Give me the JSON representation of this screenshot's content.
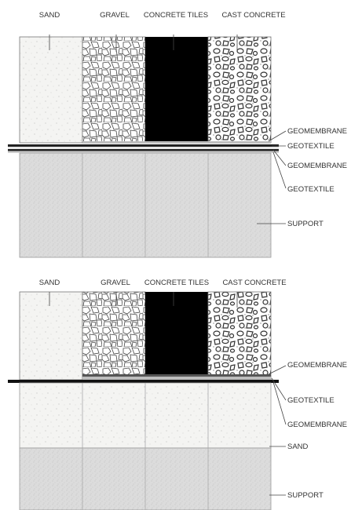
{
  "diagram1": {
    "top_labels": [
      "SAND",
      "GRAVEL",
      "CONCRETE TILES",
      "CAST CONCRETE"
    ],
    "side_labels": [
      "GEOMEMBRANE",
      "GEOTEXTILE",
      "GEOMEMBRANE",
      "GEOTEXTILE",
      "SUPPORT"
    ]
  },
  "diagram2": {
    "top_labels": [
      "SAND",
      "GRAVEL",
      "CONCRETE TILES",
      "CAST CONCRETE"
    ],
    "side_labels": [
      "GEOMEMBRANE",
      "GEOTEXTILE",
      "GEOMEMBRANE",
      "SAND",
      "SUPPORT"
    ]
  },
  "colors": {
    "sand": "#f4f4f2",
    "support": "#dcdcdc",
    "tiles": "#000000",
    "line": "#555555"
  }
}
